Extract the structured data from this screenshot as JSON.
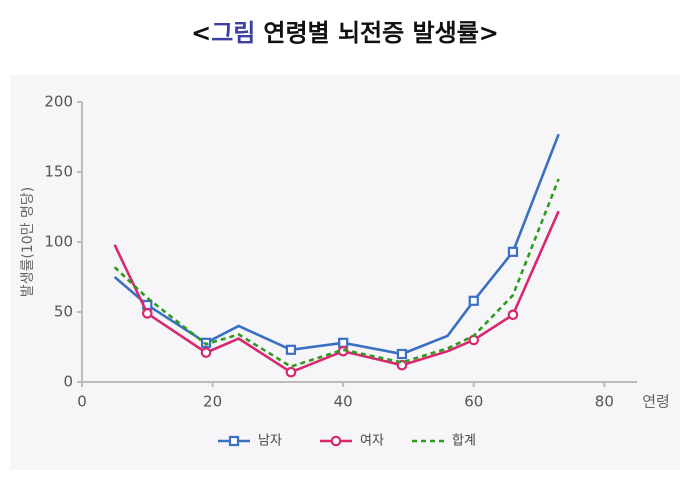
{
  "chart_data": {
    "type": "line",
    "title": {
      "open": "<",
      "tag": "그림",
      "text": "연령별 뇌전증 발생률",
      "close": ">"
    },
    "xlabel": "연령",
    "ylabel": "발생률(10만 명당)",
    "xlim": [
      0,
      85
    ],
    "ylim": [
      0,
      200
    ],
    "xticks": [
      0,
      20,
      40,
      60,
      80
    ],
    "yticks": [
      0,
      50,
      100,
      150,
      200
    ],
    "series": [
      {
        "name": "남자",
        "color": "#3a6fc4",
        "style": "solid",
        "marker": "square",
        "x": [
          5,
          10,
          19,
          24,
          32,
          40,
          49,
          56,
          60,
          66,
          73
        ],
        "values": [
          75,
          55,
          28,
          40,
          23,
          28,
          20,
          33,
          58,
          93,
          177
        ],
        "markers": [
          false,
          true,
          true,
          false,
          true,
          true,
          true,
          false,
          true,
          true,
          false
        ]
      },
      {
        "name": "여자",
        "color": "#d8286e",
        "style": "solid",
        "marker": "circle",
        "x": [
          5,
          10,
          19,
          24,
          32,
          40,
          49,
          56,
          60,
          66,
          73
        ],
        "values": [
          98,
          49,
          21,
          31,
          7,
          22,
          12,
          22,
          30,
          48,
          122
        ],
        "markers": [
          false,
          true,
          true,
          false,
          true,
          true,
          true,
          false,
          true,
          true,
          false
        ]
      },
      {
        "name": "합계",
        "color": "#2f9a1e",
        "style": "dashed",
        "marker": "none",
        "x": [
          5,
          10,
          19,
          24,
          32,
          40,
          49,
          56,
          60,
          66,
          73
        ],
        "values": [
          82,
          60,
          27,
          34,
          11,
          23,
          14,
          24,
          33,
          62,
          145
        ],
        "markers": [
          false,
          false,
          false,
          false,
          false,
          false,
          false,
          false,
          false,
          false,
          false
        ]
      }
    ]
  }
}
